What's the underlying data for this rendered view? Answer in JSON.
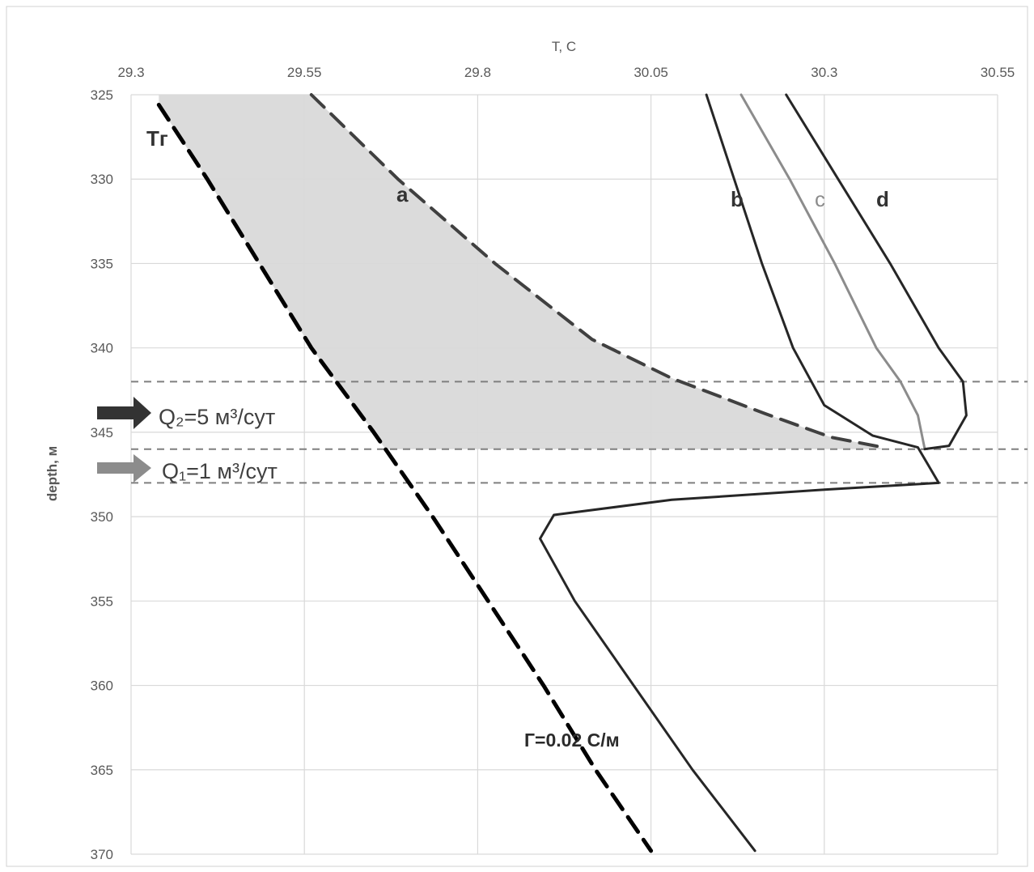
{
  "chart_data": {
    "type": "line",
    "title": "",
    "xlabel": "Т, С",
    "ylabel": "depth, м",
    "xlim": [
      29.3,
      30.55
    ],
    "ylim": [
      325,
      370
    ],
    "x_axis_position": "top",
    "y_inverted": true,
    "grid": true,
    "x_ticks": [
      "29.3",
      "29.55",
      "29.8",
      "30.05",
      "30.3",
      "30.55"
    ],
    "y_ticks": [
      "325",
      "330",
      "335",
      "340",
      "345",
      "350",
      "355",
      "360",
      "365",
      "370"
    ],
    "series": [
      {
        "name": "Tг",
        "style": "dashed",
        "color": "#000000",
        "points": [
          [
            29.34,
            325.6
          ],
          [
            29.41,
            330
          ],
          [
            29.485,
            335
          ],
          [
            29.56,
            340
          ],
          [
            29.65,
            345
          ],
          [
            29.735,
            350
          ],
          [
            29.815,
            355
          ],
          [
            29.895,
            360
          ],
          [
            29.97,
            365
          ],
          [
            30.05,
            369.8
          ]
        ]
      },
      {
        "name": "a",
        "style": "dashed",
        "color": "#404040",
        "points": [
          [
            29.56,
            325
          ],
          [
            29.685,
            330
          ],
          [
            29.825,
            335
          ],
          [
            29.965,
            339.5
          ],
          [
            30.08,
            341.8
          ],
          [
            30.215,
            343.9
          ],
          [
            30.31,
            345.3
          ],
          [
            30.385,
            345.9
          ]
        ]
      },
      {
        "name": "b",
        "style": "solid",
        "color": "#262626",
        "points": [
          [
            30.13,
            325
          ],
          [
            30.17,
            330
          ],
          [
            30.21,
            335
          ],
          [
            30.255,
            340
          ],
          [
            30.3,
            343.4
          ],
          [
            30.37,
            345.2
          ],
          [
            30.435,
            345.9
          ],
          [
            30.465,
            348
          ],
          [
            30.3,
            348.4
          ],
          [
            30.08,
            349
          ],
          [
            29.91,
            349.9
          ],
          [
            29.89,
            351.3
          ],
          [
            29.94,
            355
          ],
          [
            30.025,
            360
          ],
          [
            30.11,
            365
          ],
          [
            30.2,
            369.8
          ]
        ]
      },
      {
        "name": "c",
        "style": "solid",
        "color": "#8c8c8c",
        "points": [
          [
            30.18,
            325
          ],
          [
            30.25,
            330
          ],
          [
            30.315,
            335
          ],
          [
            30.375,
            340
          ],
          [
            30.41,
            342
          ],
          [
            30.435,
            344
          ],
          [
            30.445,
            346
          ]
        ]
      },
      {
        "name": "d",
        "style": "solid",
        "color": "#262626",
        "points": [
          [
            30.245,
            325
          ],
          [
            30.32,
            330
          ],
          [
            30.395,
            335
          ],
          [
            30.465,
            340
          ],
          [
            30.5,
            342
          ],
          [
            30.505,
            344
          ],
          [
            30.48,
            345.8
          ],
          [
            30.445,
            346
          ]
        ]
      }
    ],
    "shaded_region": {
      "name": "between Tг and a",
      "color": "#d9d9d9",
      "depth_range": [
        325,
        346
      ]
    },
    "horizontal_markers": [
      342,
      346,
      348
    ],
    "annotations": {
      "tg_label": "Tг",
      "a_label": "a",
      "b_label": "b",
      "c_label": "c",
      "d_label": "d",
      "q2_text": "Q₂=5 м³/сут",
      "q1_text": "Q₁=1 м³/сут",
      "gradient_text": "Г=0.02 С/м"
    }
  }
}
